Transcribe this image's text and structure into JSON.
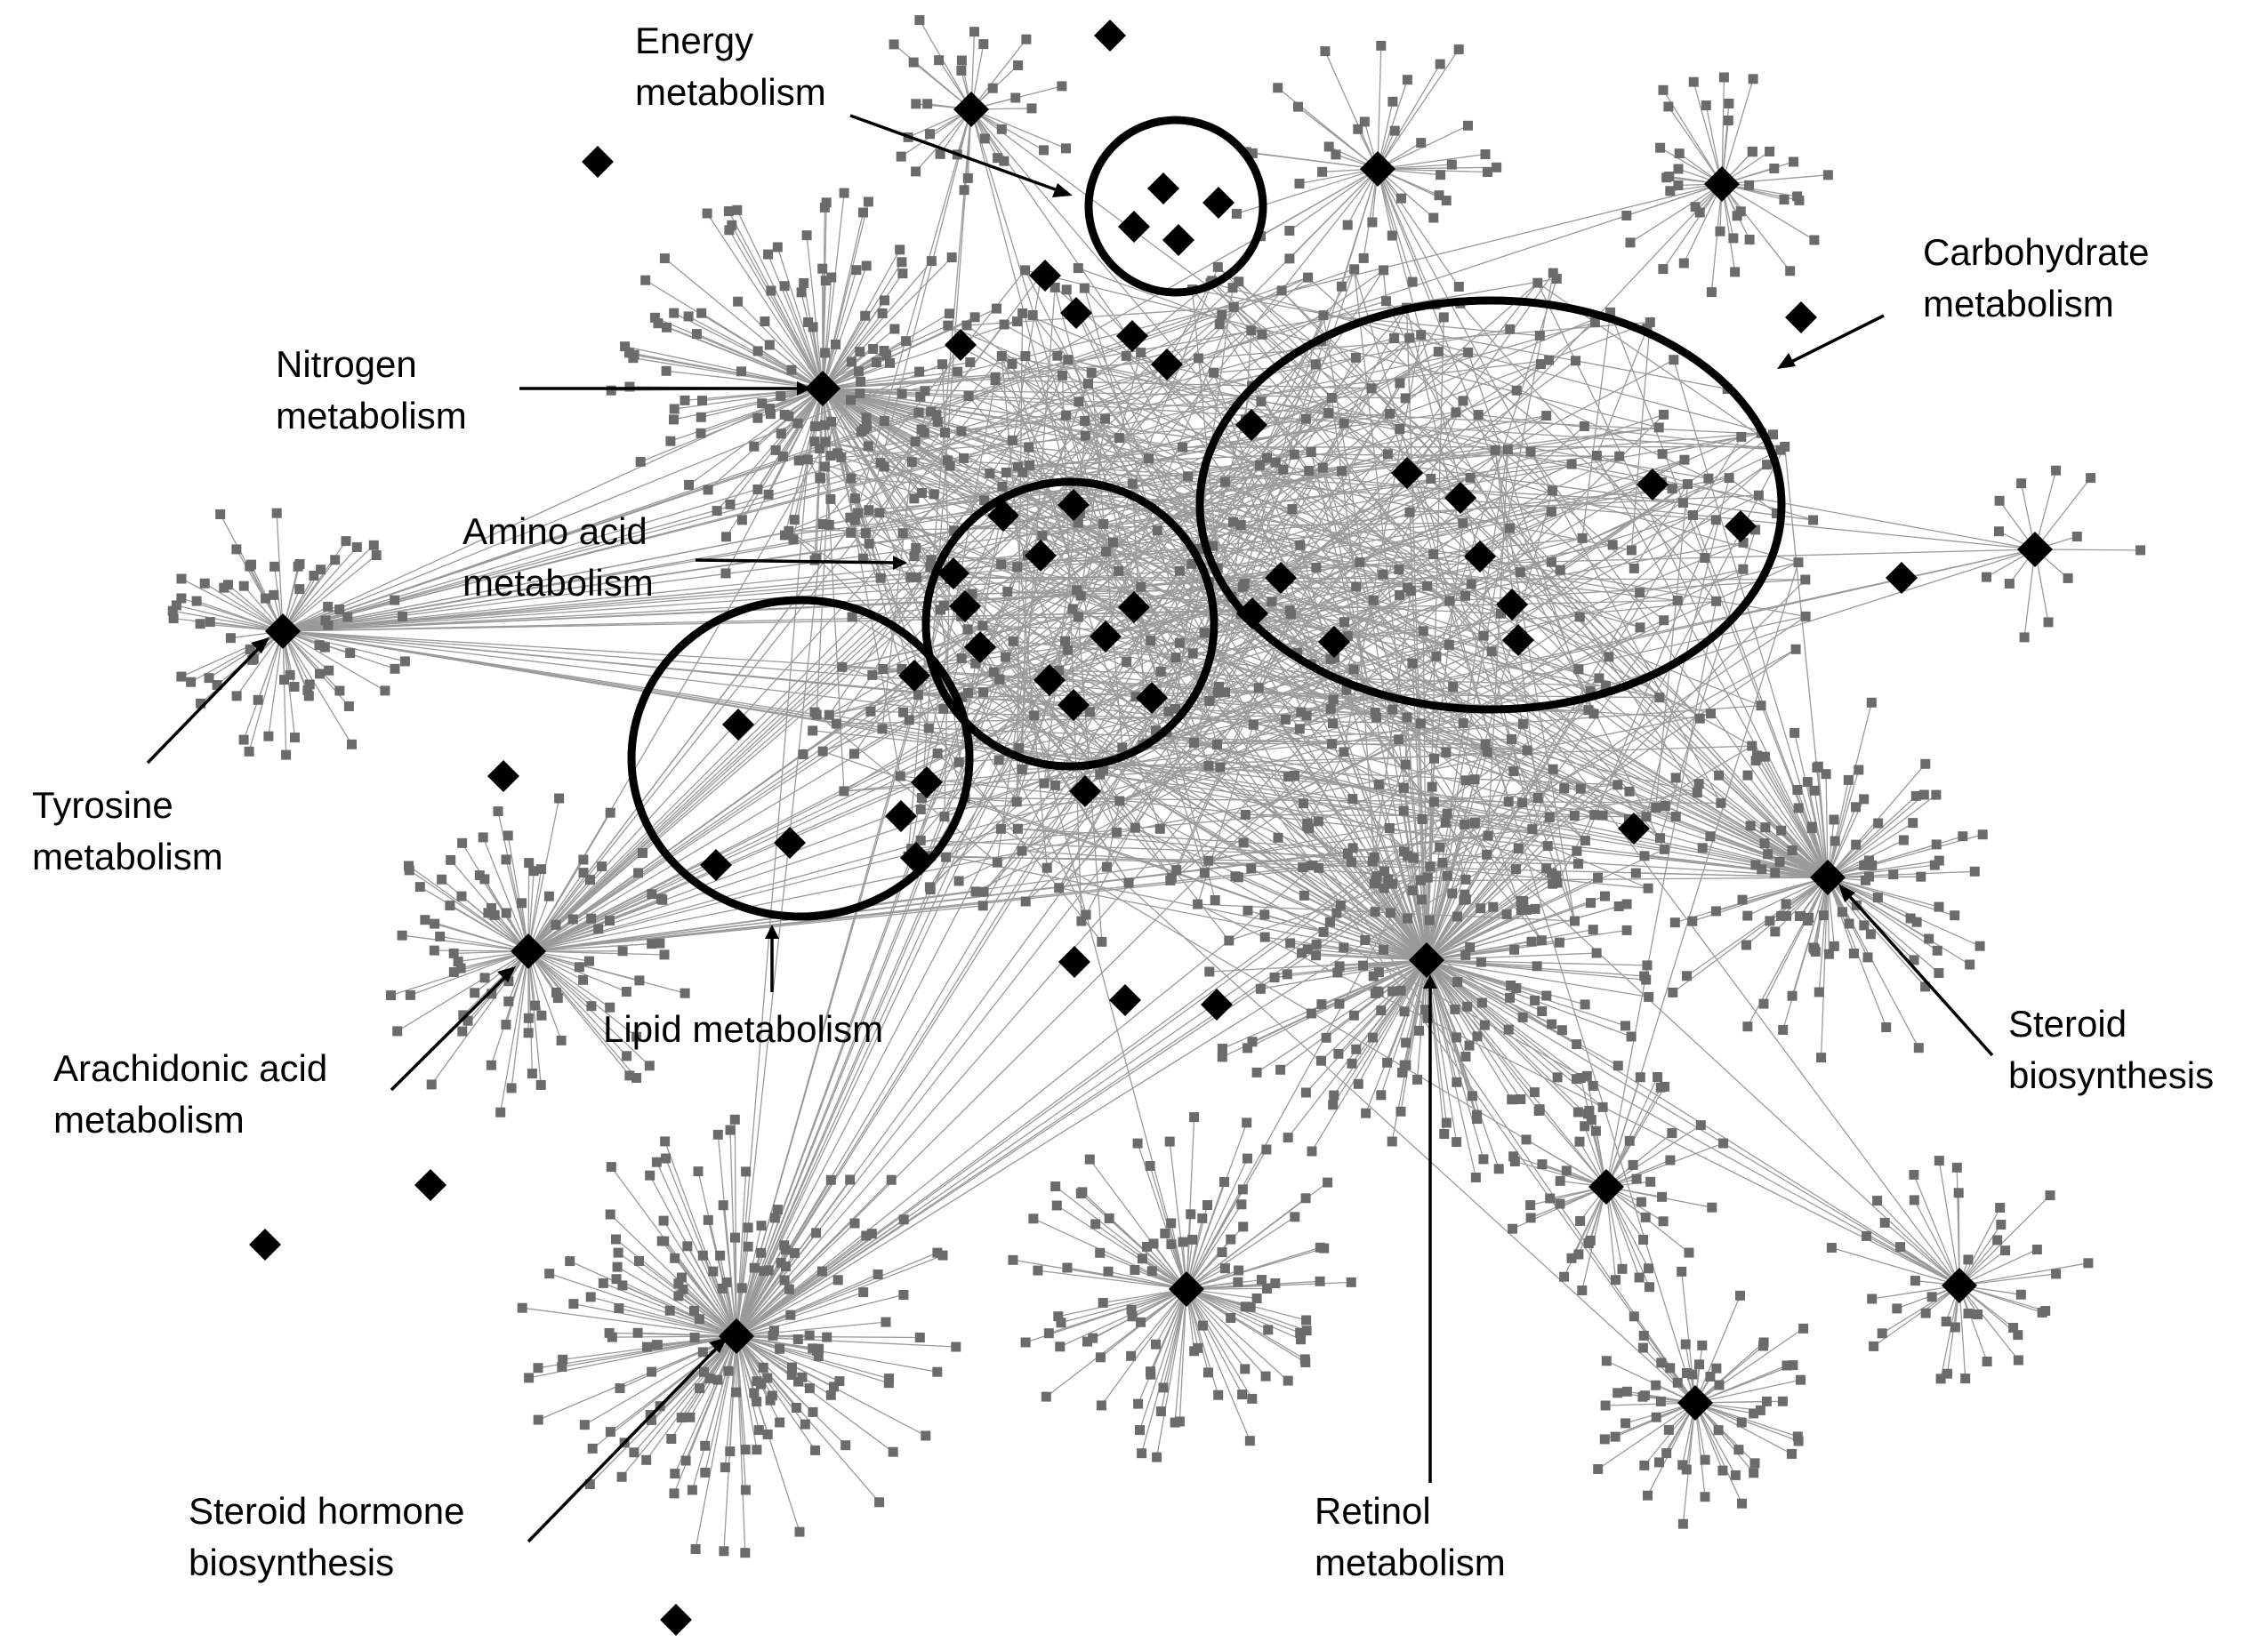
{
  "labels": {
    "energy": [
      "Energy",
      "metabolism"
    ],
    "carbohydrate": [
      "Carbohydrate",
      "metabolism"
    ],
    "nitrogen": [
      "Nitrogen",
      "metabolism"
    ],
    "amino": [
      "Amino acid",
      "metabolism"
    ],
    "tyrosine": [
      "Tyrosine",
      "metabolism"
    ],
    "lipid": [
      "Lipid metabolism"
    ],
    "arachidonic": [
      "Arachidonic acid",
      "metabolism"
    ],
    "steroid_bio": [
      "Steroid",
      "biosynthesis"
    ],
    "steroid_hormone": [
      "Steroid hormone",
      "biosynthesis"
    ],
    "retinol": [
      "Retinol",
      "metabolism"
    ]
  },
  "colors": {
    "hub": "#000000",
    "leaf": "#6b6b6b",
    "edge": "#9a9a9a",
    "ring": "#000000"
  },
  "node_shapes": {
    "hub": "diamond",
    "leaf": "square"
  }
}
